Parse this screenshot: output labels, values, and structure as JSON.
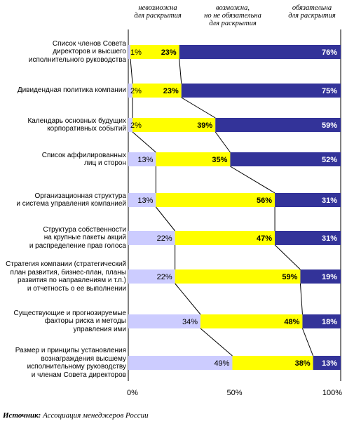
{
  "headers": {
    "impossible": "невозможна\nдля раскрытия",
    "possible": "возможна,\nно не обязательна\nдля раскрытия",
    "mandatory": "обязательна\nдля раскрытия"
  },
  "footer": {
    "source_label": "Источник:",
    "source_text": " Ассоциация менеджеров России"
  },
  "colors": {
    "impossible": "#ccccff",
    "possible": "#ffff00",
    "mandatory": "#333399",
    "mandatory_text": "#ffffff"
  },
  "chart_data": {
    "type": "bar",
    "stacked": true,
    "orientation": "horizontal",
    "categories": [
      "Список членов Совета\nдиректоров и высшего\nисполнительного руководства",
      "Дивидендная политика компании",
      "Календарь основных будущих\nкорпоративных событий",
      "Список аффилированных\nлиц и сторон",
      "Организационная структура\nи система управления компанией",
      "Структура собственности\nна крупные пакеты акций\nи распределение прав голоса",
      "Стратегия компании (стратегический\nплан развития, бизнес-план, планы\nразвития по направлениям и т.п.)\nи отчетность о ее выполнении",
      "Существующие и прогнозируемые\nфакторы риска и методы\nуправления ими",
      "Размер и принципы установления\nвознаграждения высшему\nисполнительному руководству\nи членам Совета директоров"
    ],
    "series": [
      {
        "name": "невозможна для раскрытия",
        "values": [
          1,
          2,
          2,
          13,
          13,
          22,
          22,
          34,
          49
        ]
      },
      {
        "name": "возможна, но не обязательна для раскрытия",
        "values": [
          23,
          23,
          39,
          35,
          56,
          47,
          59,
          48,
          38
        ]
      },
      {
        "name": "обязательна для раскрытия",
        "values": [
          76,
          75,
          59,
          52,
          31,
          31,
          19,
          18,
          13
        ]
      }
    ],
    "labels": [
      [
        "1%",
        "23%",
        "76%"
      ],
      [
        "2%",
        "23%",
        "75%"
      ],
      [
        "2%",
        "39%",
        "59%"
      ],
      [
        "13%",
        "35%",
        "52%"
      ],
      [
        "13%",
        "56%",
        "31%"
      ],
      [
        "22%",
        "47%",
        "31%"
      ],
      [
        "22%",
        "59%",
        "19%"
      ],
      [
        "34%",
        "48%",
        "18%"
      ],
      [
        "49%",
        "38%",
        "13%"
      ]
    ],
    "xlim": [
      0,
      100
    ],
    "xticks": [
      "0%",
      "50%",
      "100%"
    ],
    "connector_lines": true,
    "grid": false
  }
}
